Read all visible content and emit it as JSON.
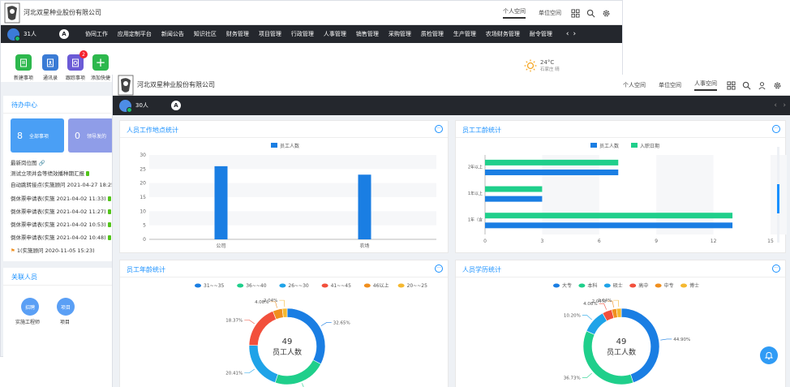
{
  "company": "河北双星种业股份有限公司",
  "back": {
    "top_links": [
      "个人空间",
      "单位空间"
    ],
    "user_count": "31人",
    "menu": [
      "协同工作",
      "应用定制平台",
      "新闻公告",
      "知识社区",
      "财务管理",
      "项目管理",
      "行政管理",
      "人事管理",
      "销售管理",
      "采购管理",
      "质检管理",
      "生产管理",
      "农场财务管理",
      "耐令管理"
    ],
    "quick_actions": [
      {
        "label": "新建事项",
        "color": "#2db84d",
        "icon": "doc-icon"
      },
      {
        "label": "通讯录",
        "color": "#3a7bd5",
        "icon": "contacts-icon"
      },
      {
        "label": "跟踪事项",
        "color": "#6b5bd6",
        "icon": "track-icon",
        "badge": "2"
      },
      {
        "label": "添加快捷",
        "color": "#2db84d",
        "icon": "plus-icon"
      }
    ],
    "weather": {
      "temp": "24°C",
      "city": "石家庄 晴"
    }
  },
  "todo": {
    "title": "待办中心",
    "cards": [
      {
        "count": "8",
        "label": "全部事项"
      },
      {
        "count": "0",
        "label": "领导发的"
      }
    ],
    "items": [
      "最新岗位图",
      "测试立项并会等绩效播种期汇报",
      "自动跳转接点(实施顾问 2021-04-27 18:25)",
      "倒休票申请表(实施 2021-04-02 11:33)",
      "倒休票申请表(实施 2021-04-02 11:27)",
      "倒休票申请表(实施 2021-04-02 10:53)",
      "倒休票申请表(实施 2021-04-02 10:48)",
      "1(实施顾问 2020-11-05 15:23)"
    ]
  },
  "related": {
    "title": "关联人员",
    "people": [
      {
        "circle": "招聘",
        "label": "实施工程师"
      },
      {
        "circle": "项目",
        "label": "项目"
      }
    ]
  },
  "front": {
    "top_links": [
      "个人空间",
      "单位空间",
      "人事空间"
    ],
    "active_link": "人事空间",
    "user_count": "30人"
  },
  "colors": {
    "blue": "#1a7ee3",
    "green": "#1fcf8b",
    "red": "#f2503c",
    "orange": "#f08f1e",
    "yellow": "#f5b830",
    "skyblue": "#1fa3e8"
  },
  "charts": {
    "location": {
      "title": "人员工作地点统计",
      "chart_data": {
        "type": "bar",
        "categories": [
          "公司",
          "农场"
        ],
        "series": [
          {
            "name": "员工人数",
            "values": [
              26,
              23
            ]
          }
        ],
        "ylim": [
          0,
          30
        ],
        "yticks": [
          "0",
          "5",
          "10",
          "15",
          "20",
          "25",
          "30"
        ]
      }
    },
    "seniority": {
      "title": "员工工龄统计",
      "chart_data": {
        "type": "bar",
        "orientation": "horizontal",
        "categories": [
          "1年（含）以下",
          "1年以上-2年...",
          "2年以上-4年..."
        ],
        "series": [
          {
            "name": "员工人数",
            "values": [
              13,
              3,
              7
            ]
          },
          {
            "name": "入职日期",
            "values": [
              13,
              3,
              7
            ]
          }
        ],
        "xlim": [
          0,
          15
        ],
        "xticks": [
          "0",
          "3",
          "6",
          "9",
          "12",
          "15"
        ]
      }
    },
    "age": {
      "title": "员工年龄统计",
      "chart_data": {
        "type": "pie",
        "legend": [
          "31~~35",
          "36~~40",
          "26~~30",
          "41~~45",
          "46以上",
          "20~~25"
        ],
        "center_value": "49",
        "center_label": "员工人数",
        "slices": [
          {
            "label": "31~~35",
            "value": 32.65
          },
          {
            "label": "36~~40",
            "value": 22.45
          },
          {
            "label": "26~~30",
            "value": 20.41
          },
          {
            "label": "41~~45",
            "value": 18.37
          },
          {
            "label": "46以上",
            "value": 4.08
          },
          {
            "label": "20~~25",
            "value": 2.04
          }
        ]
      }
    },
    "education": {
      "title": "人员学历统计",
      "chart_data": {
        "type": "pie",
        "legend": [
          "大专",
          "本科",
          "硕士",
          "高中",
          "中专",
          "博士"
        ],
        "center_value": "49",
        "center_label": "员工人数",
        "slices": [
          {
            "label": "大专",
            "value": 44.9
          },
          {
            "label": "本科",
            "value": 36.73
          },
          {
            "label": "硕士",
            "value": 10.2
          },
          {
            "label": "高中",
            "value": 4.08
          },
          {
            "label": "中专",
            "value": 2.04
          },
          {
            "label": "博士",
            "value": 2.04
          }
        ]
      }
    }
  }
}
